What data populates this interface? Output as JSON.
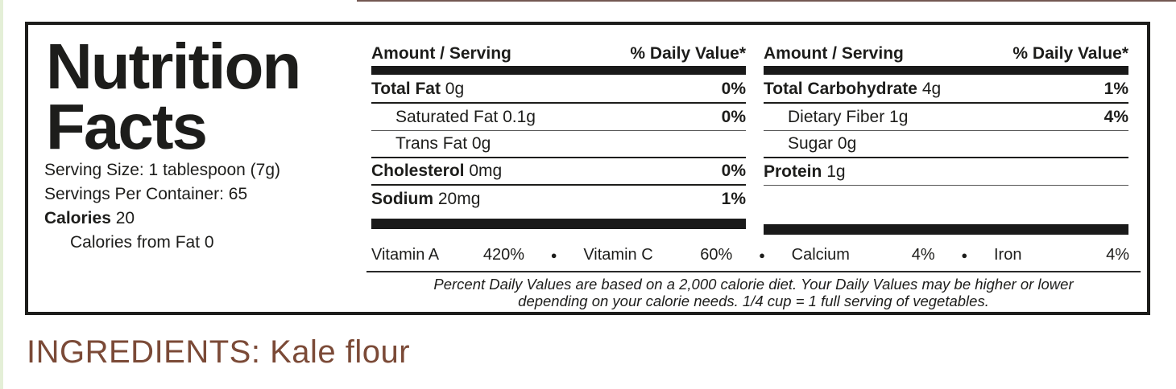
{
  "page": {
    "background": "#ffffff",
    "left_strip_color": "#e4efd7",
    "top_artifact_color": "#5b3a32",
    "text_color": "#1d1d1b",
    "bar_color": "#1a1a1a"
  },
  "label": {
    "title_line1": "Nutrition",
    "title_line2": "Facts",
    "serving_info": {
      "serving_size": "Serving Size: 1 tablespoon (7g)",
      "servings_per_container": "Servings Per Container: 65",
      "calories_label": "Calories",
      "calories_value": "20",
      "calories_from_fat": "Calories from Fat 0"
    },
    "columns": [
      {
        "header_amount": "Amount / Serving",
        "header_dv": "% Daily Value*",
        "rows": [
          {
            "label": "Total Fat",
            "value": "0g",
            "dv": "0%"
          },
          {
            "label": "Saturated Fat",
            "value": "0.1g",
            "dv": "0%"
          },
          {
            "label": "Trans Fat",
            "value": "0g",
            "dv": ""
          },
          {
            "label": "Cholesterol",
            "value": "0mg",
            "dv": "0%"
          },
          {
            "label": "Sodium",
            "value": "20mg",
            "dv": "1%"
          }
        ]
      },
      {
        "header_amount": "Amount / Serving",
        "header_dv": "% Daily Value*",
        "rows": [
          {
            "label": "Total Carbohydrate",
            "value": "4g",
            "dv": "1%"
          },
          {
            "label": "Dietary Fiber",
            "value": "1g",
            "dv": "4%"
          },
          {
            "label": "Sugar",
            "value": "0g",
            "dv": ""
          },
          {
            "label": "Protein",
            "value": "1g",
            "dv": ""
          }
        ]
      }
    ],
    "micronutrients": [
      {
        "name": "Vitamin A",
        "dv": "420%"
      },
      {
        "name": "Vitamin C",
        "dv": "60%"
      },
      {
        "name": "Calcium",
        "dv": "4%"
      },
      {
        "name": "Iron",
        "dv": "4%"
      }
    ],
    "bullet_glyph": "●",
    "footnote_line1": "Percent Daily Values are based on a 2,000 calorie diet. Your Daily Values may be higher or lower",
    "footnote_line2": "depending on your calorie needs. 1/4 cup = 1 full serving of vegetables."
  },
  "ingredients": {
    "label": "INGREDIENTS:",
    "value": " Kale flour",
    "color": "#7b4a37"
  }
}
